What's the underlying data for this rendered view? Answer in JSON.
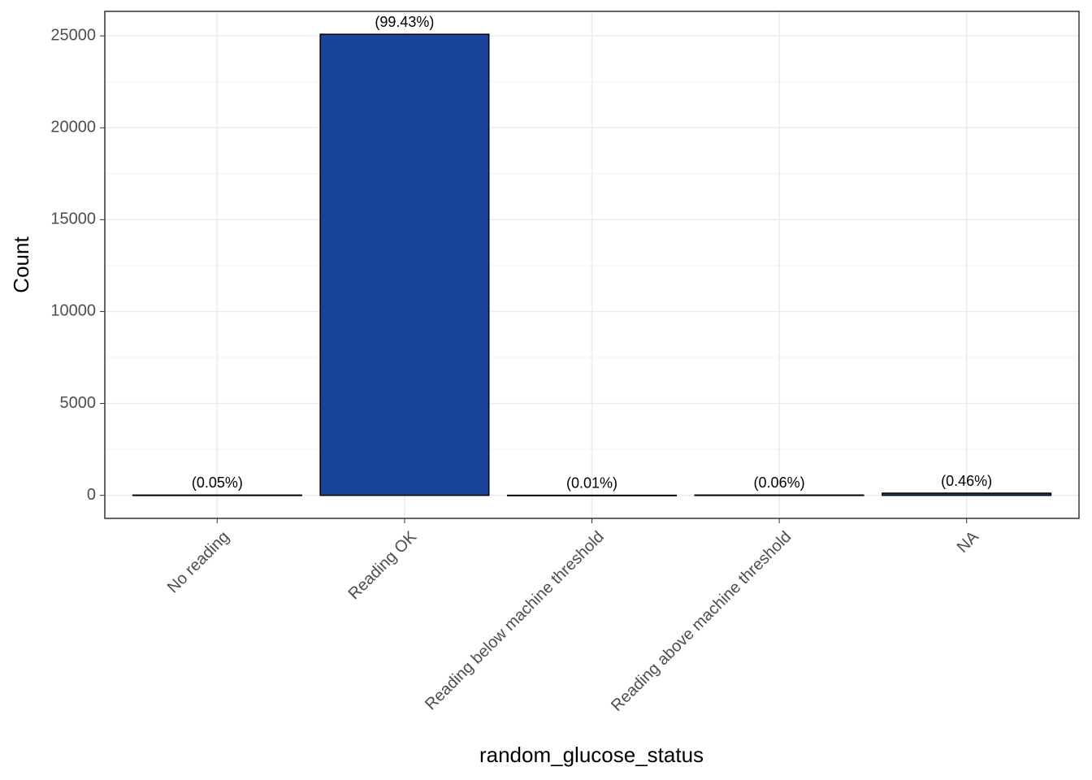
{
  "chart_data": {
    "type": "bar",
    "x_label": "random_glucose_status",
    "y_label": "Count",
    "categories": [
      "No reading",
      "Reading OK",
      "Reading below machine threshold",
      "Reading above machine threshold",
      "NA"
    ],
    "values": [
      13,
      25088,
      3,
      15,
      116
    ],
    "bar_annotations": [
      "(0.05%)",
      "(99.43%)",
      "(0.01%)",
      "(0.06%)",
      "(0.46%)"
    ],
    "color": "#1a4499",
    "edge_color": "#000000",
    "ylim": [
      -1254,
      26334
    ],
    "yticks": [
      0,
      5000,
      10000,
      15000,
      20000,
      25000
    ],
    "minor_grid": [
      2500,
      7500,
      12500,
      17500,
      22500
    ],
    "grid": true
  }
}
